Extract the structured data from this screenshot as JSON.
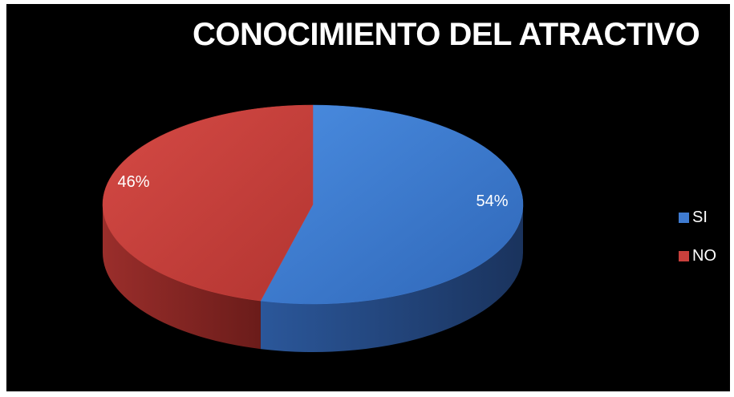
{
  "chart_data": {
    "type": "pie",
    "title": "CONOCIMIENTO DEL ATRACTIVO",
    "categories": [
      "SI",
      "NO"
    ],
    "values": [
      54,
      46
    ],
    "labels": [
      "54%",
      "46%"
    ],
    "colors": [
      "#3f7bd1",
      "#c9403c"
    ],
    "legend_position": "right",
    "style": "3d"
  }
}
